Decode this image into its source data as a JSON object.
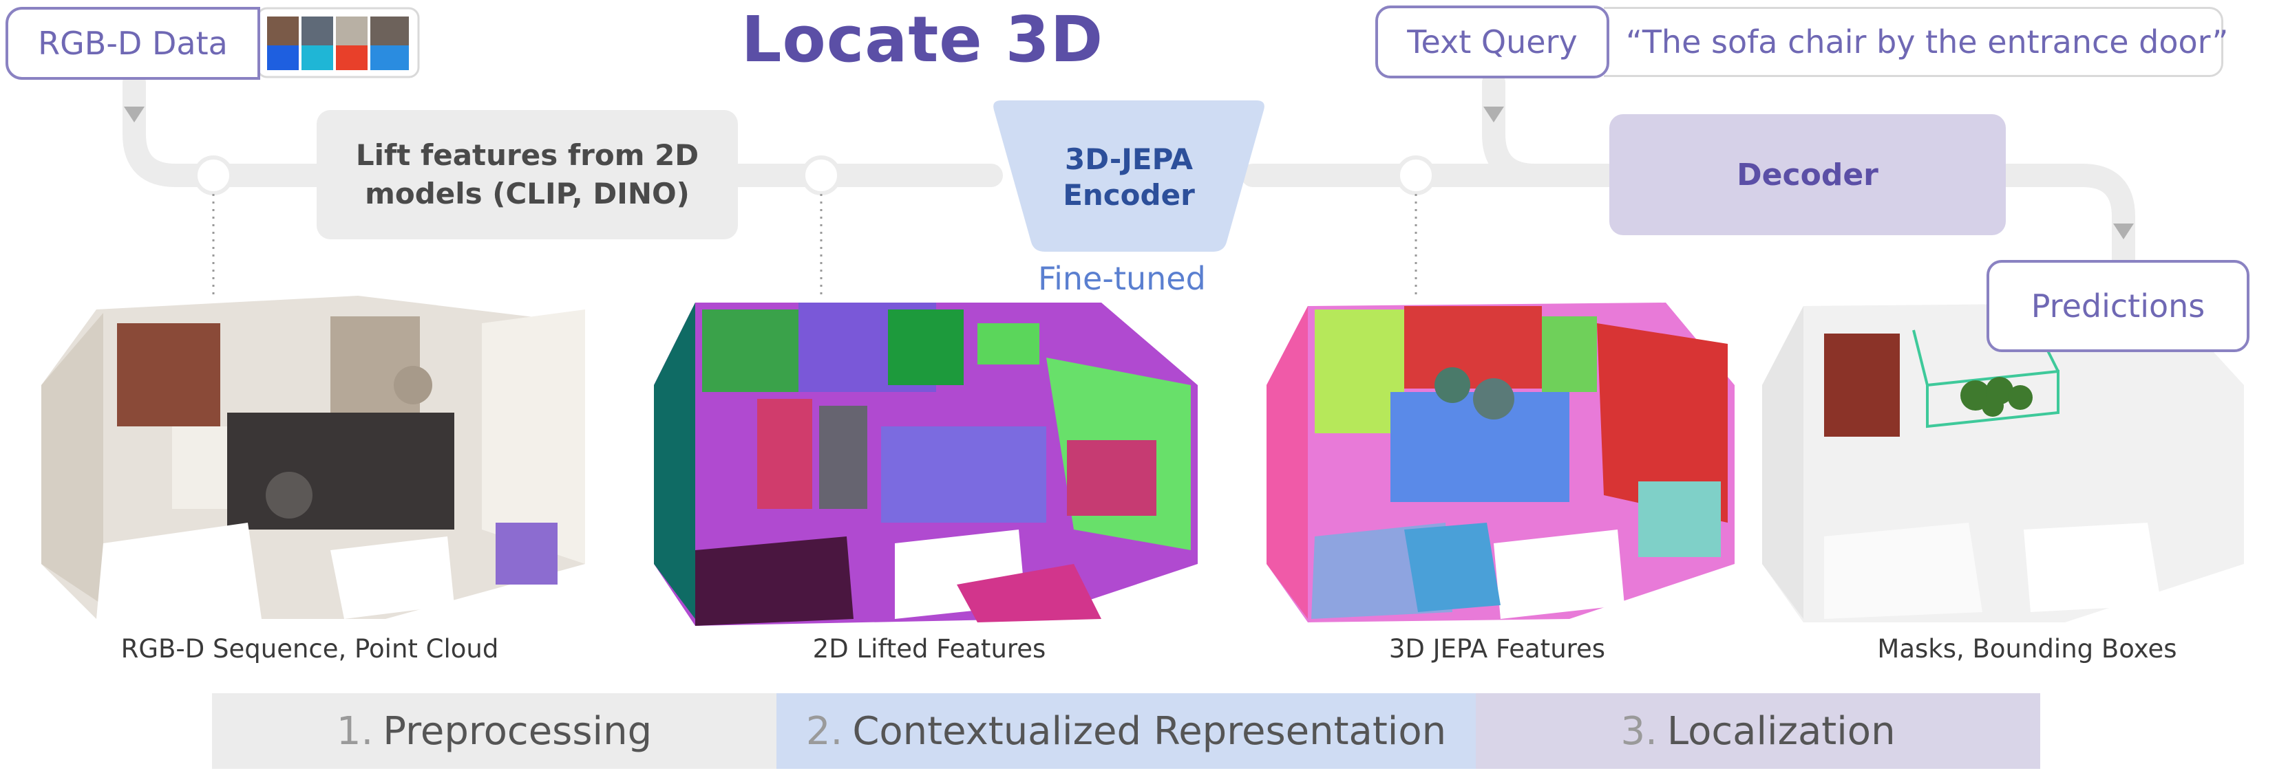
{
  "title": "Locate 3D",
  "inputs": {
    "rgbd_label": "RGB-D Data",
    "text_query_label": "Text Query",
    "query_text": "“The sofa chair by the entrance door”"
  },
  "pipeline": {
    "lift_box": "Lift features from 2D models (CLIP, DINO)",
    "encoder": "3D-JEPA Encoder",
    "encoder_note": "Fine-tuned",
    "decoder": "Decoder",
    "predictions": "Predictions"
  },
  "panels": [
    {
      "caption": "RGB-D Sequence, Point Cloud"
    },
    {
      "caption": "2D Lifted Features"
    },
    {
      "caption": "3D JEPA Features"
    },
    {
      "caption": "Masks, Bounding Boxes"
    }
  ],
  "stages": [
    {
      "num": "1.",
      "label": "Preprocessing",
      "color": "#ececec"
    },
    {
      "num": "2.",
      "label": "Contextualized Representation",
      "color": "#cfdcf3"
    },
    {
      "num": "3.",
      "label": "Localization",
      "color": "#d9d5e8"
    }
  ]
}
